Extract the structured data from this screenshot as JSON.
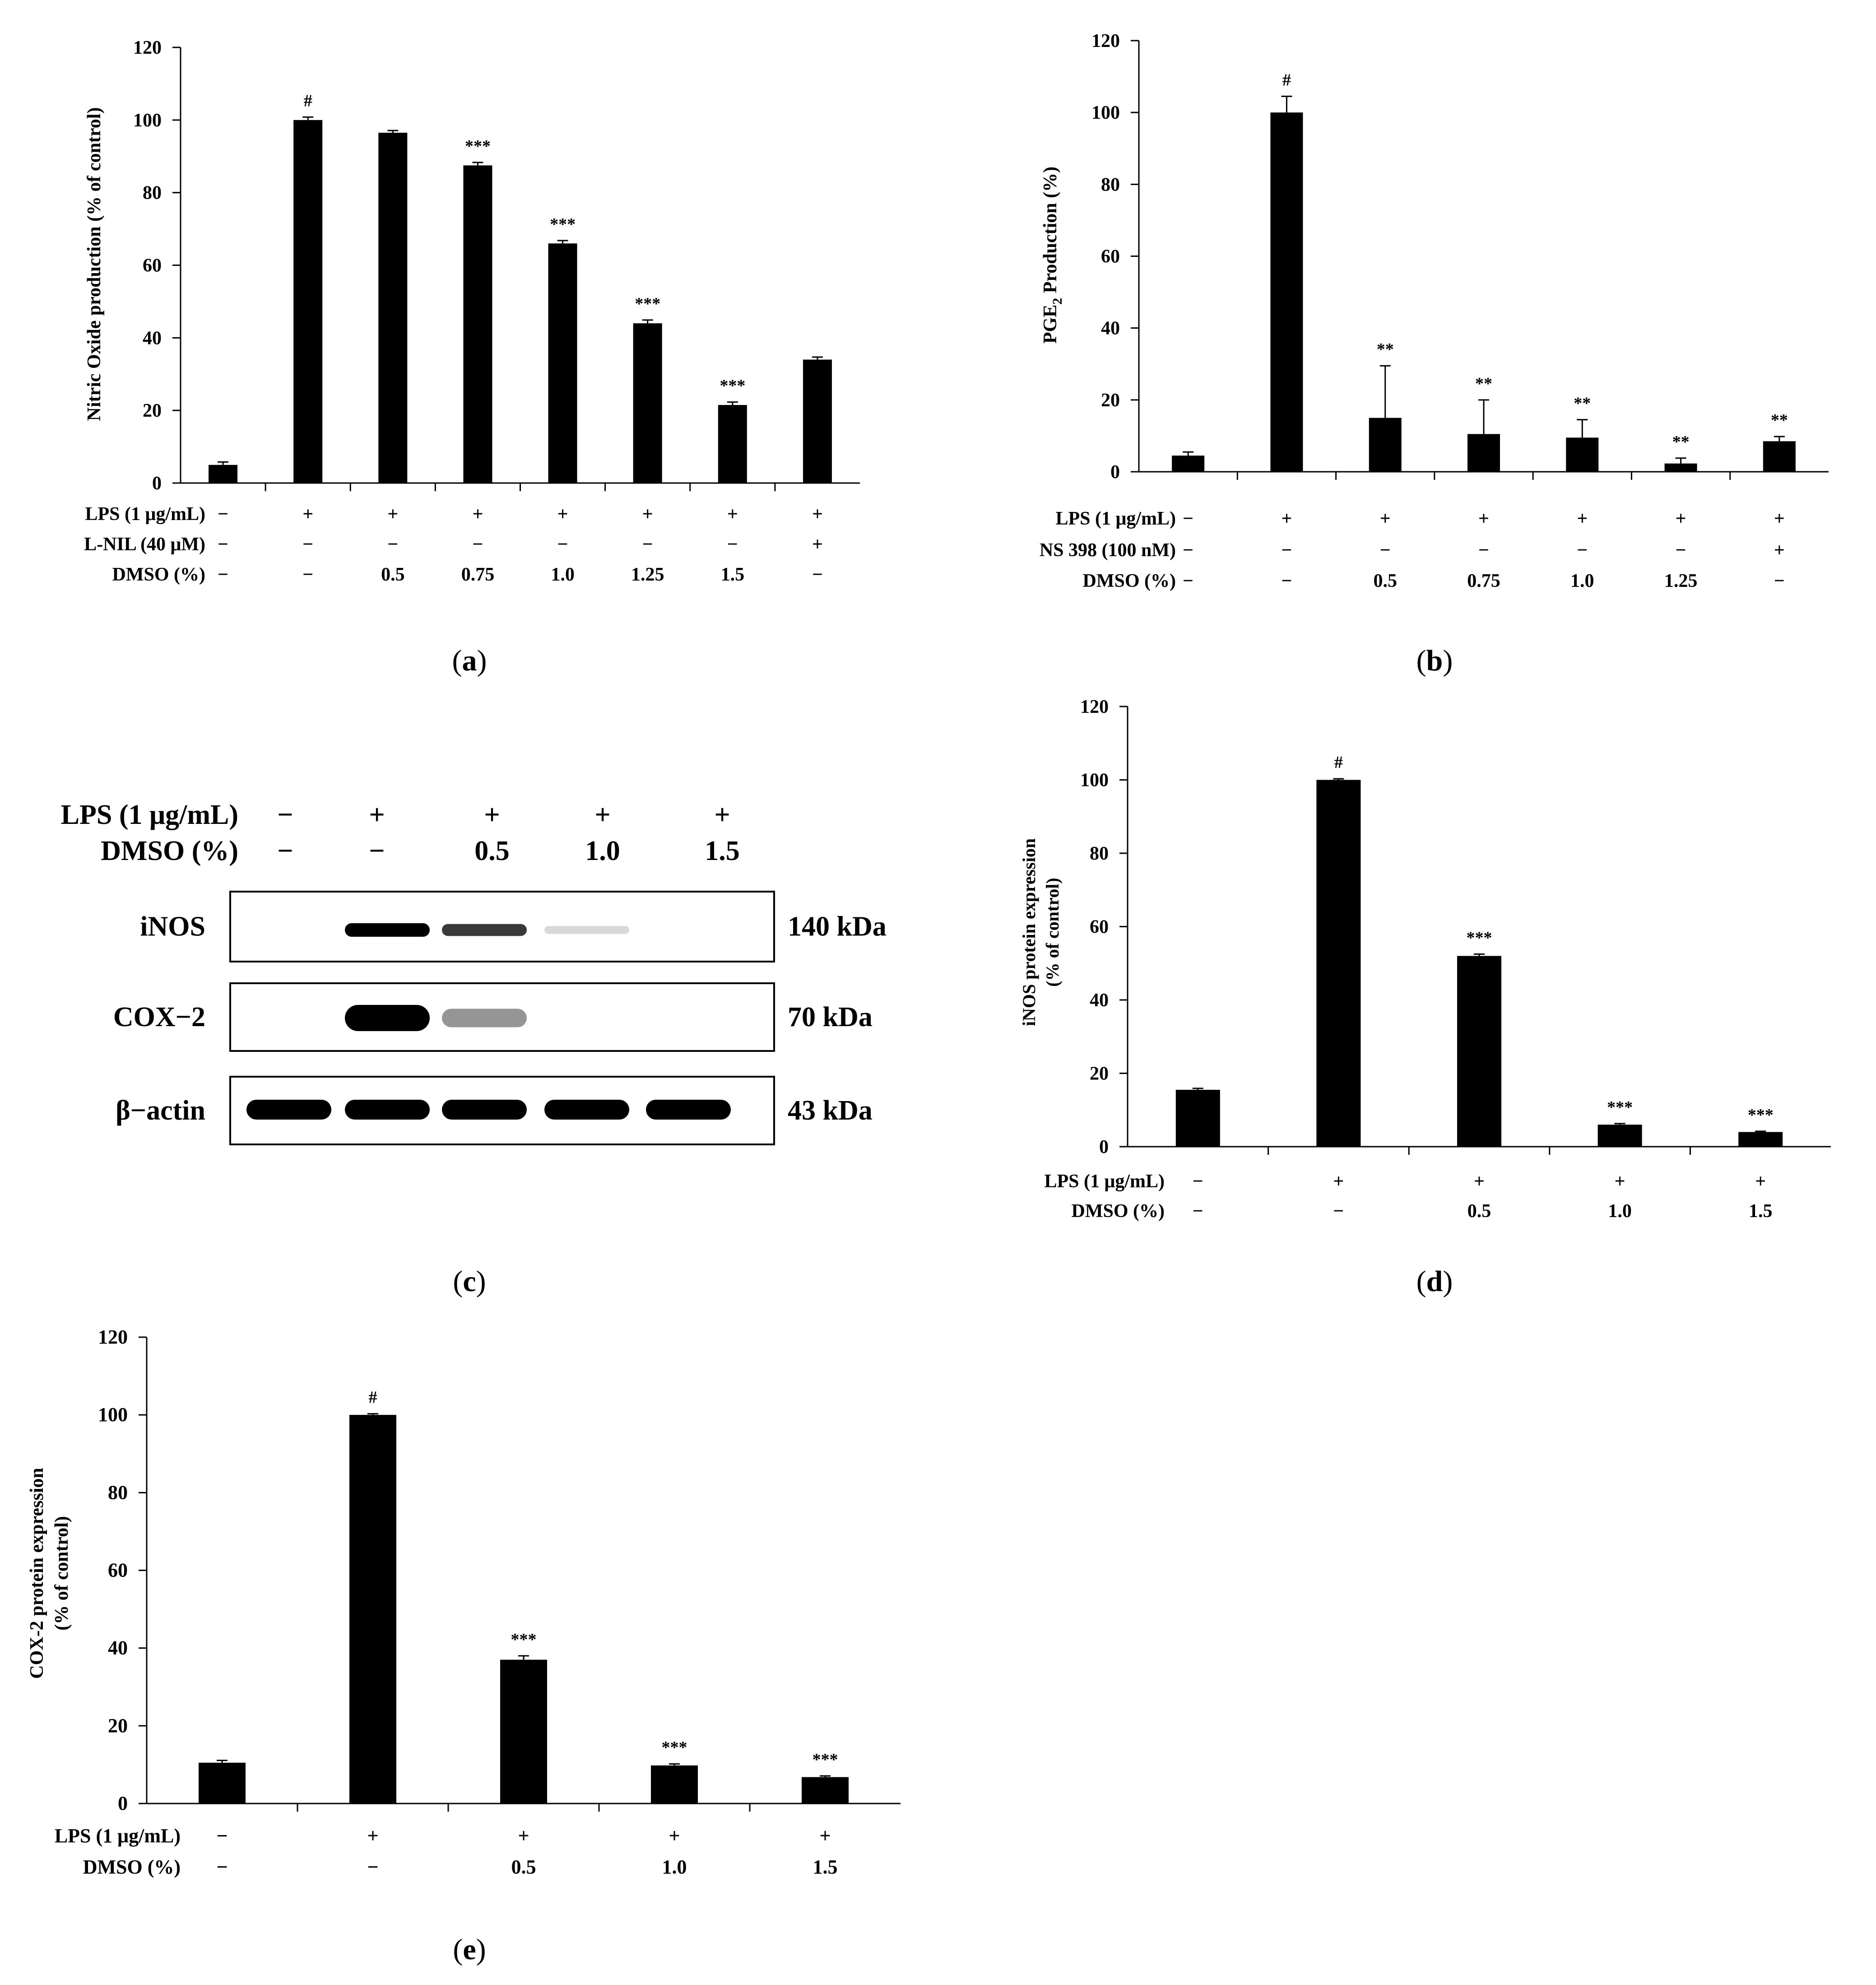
{
  "chart_data": [
    {
      "id": "a",
      "type": "bar",
      "panel_label": "a",
      "ylabel": "Nitric Oxide production (% of control)",
      "ylim": [
        0,
        120
      ],
      "yticks": [
        0,
        20,
        40,
        60,
        80,
        100,
        120
      ],
      "values": [
        5,
        100,
        96.5,
        87.5,
        66,
        44,
        21.5,
        34
      ],
      "errors": [
        0.8,
        0.8,
        0.6,
        0.8,
        0.8,
        0.9,
        0.8,
        0.7
      ],
      "marks": [
        "",
        "#",
        "",
        "***",
        "***",
        "***",
        "***",
        ""
      ],
      "rows": [
        {
          "label": "LPS (1 μg/mL)",
          "values": [
            "−",
            "+",
            "+",
            "+",
            "+",
            "+",
            "+",
            "+"
          ]
        },
        {
          "label": "L-NIL (40 μM)",
          "values": [
            "−",
            "−",
            "−",
            "−",
            "−",
            "−",
            "−",
            "+"
          ]
        },
        {
          "label": "DMSO (%)",
          "values": [
            "−",
            "−",
            "0.5",
            "0.75",
            "1.0",
            "1.25",
            "1.5",
            "−"
          ]
        }
      ]
    },
    {
      "id": "b",
      "type": "bar",
      "panel_label": "b",
      "ylabel_main": "PGE",
      "ylabel_sub": "2",
      "ylabel_rest": " Production (%)",
      "ylim": [
        0,
        120
      ],
      "yticks": [
        0,
        20,
        40,
        60,
        80,
        100,
        120
      ],
      "values": [
        4.5,
        100,
        15,
        10.5,
        9.5,
        2.3,
        8.5
      ],
      "errors": [
        1,
        4.5,
        14.5,
        9.5,
        5,
        1.5,
        1.3
      ],
      "marks": [
        "",
        "#",
        "**",
        "**",
        "**",
        "**",
        "**"
      ],
      "rows": [
        {
          "label": "LPS (1 μg/mL)",
          "values": [
            "−",
            "+",
            "+",
            "+",
            "+",
            "+",
            "+"
          ]
        },
        {
          "label": "NS 398 (100 nM)",
          "values": [
            "−",
            "−",
            "−",
            "−",
            "−",
            "−",
            "+"
          ]
        },
        {
          "label": "DMSO (%)",
          "values": [
            "−",
            "−",
            "0.5",
            "0.75",
            "1.0",
            "1.25",
            "−"
          ]
        }
      ]
    },
    {
      "id": "d",
      "type": "bar",
      "panel_label": "d",
      "ylabel_line1": "iNOS protein expression",
      "ylabel_line2": "(% of control)",
      "ylim": [
        0,
        120
      ],
      "yticks": [
        0,
        20,
        40,
        60,
        80,
        100,
        120
      ],
      "values": [
        15.5,
        100,
        52,
        6,
        4
      ],
      "errors": [
        0.4,
        0.3,
        0.5,
        0.3,
        0.2
      ],
      "marks": [
        "",
        "#",
        "***",
        "***",
        "***"
      ],
      "rows": [
        {
          "label": "LPS (1 μg/mL)",
          "values": [
            "−",
            "+",
            "+",
            "+",
            "+"
          ]
        },
        {
          "label": "DMSO (%)",
          "values": [
            "−",
            "−",
            "0.5",
            "1.0",
            "1.5"
          ]
        }
      ]
    },
    {
      "id": "e",
      "type": "bar",
      "panel_label": "e",
      "ylabel_line1": "COX-2 protein expression",
      "ylabel_line2": "(% of control)",
      "ylim": [
        0,
        120
      ],
      "yticks": [
        0,
        20,
        40,
        60,
        80,
        100,
        120
      ],
      "values": [
        10.5,
        100,
        37,
        9.8,
        6.8
      ],
      "errors": [
        0.6,
        0.3,
        1,
        0.4,
        0.3
      ],
      "marks": [
        "",
        "#",
        "***",
        "***",
        "***"
      ],
      "rows": [
        {
          "label": "LPS (1 μg/mL)",
          "values": [
            "−",
            "+",
            "+",
            "+",
            "+"
          ]
        },
        {
          "label": "DMSO (%)",
          "values": [
            "−",
            "−",
            "0.5",
            "1.0",
            "1.5"
          ]
        }
      ]
    }
  ],
  "blot": {
    "panel_label": "c",
    "header_rows": [
      {
        "label": "LPS (1 μg/mL)",
        "values": [
          "−",
          "+",
          "+",
          "+",
          "+"
        ]
      },
      {
        "label": "DMSO (%)",
        "values": [
          "−",
          "−",
          "0.5",
          "1.0",
          "1.5"
        ]
      }
    ],
    "bands": [
      {
        "protein": "iNOS",
        "size": "140 kDa",
        "intensity": [
          0,
          1,
          0.75,
          0.06,
          0
        ]
      },
      {
        "protein": "COX−2",
        "size": "70 kDa",
        "intensity": [
          0,
          1,
          0.35,
          0,
          0
        ]
      },
      {
        "protein": "β−actin",
        "size": "43 kDa",
        "intensity": [
          1,
          1,
          1,
          1,
          1
        ]
      }
    ]
  }
}
